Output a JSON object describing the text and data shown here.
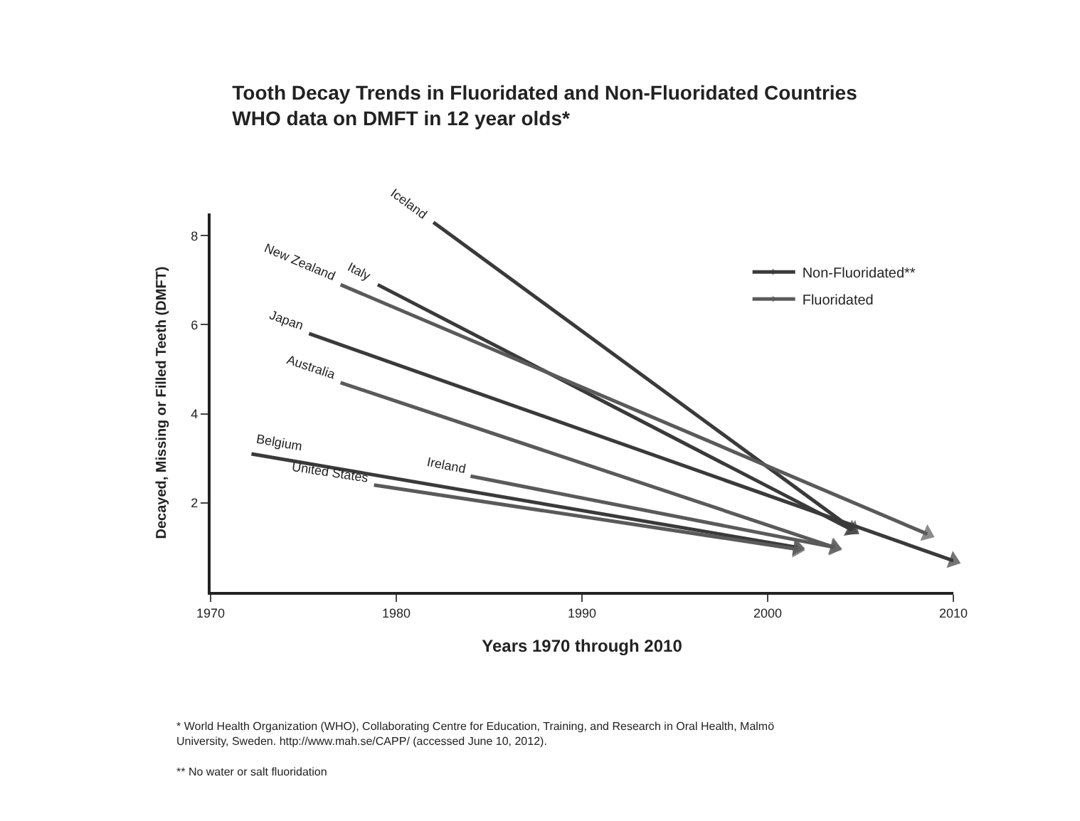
{
  "chart_data": {
    "type": "line",
    "title": "Tooth Decay Trends in Fluoridated and Non-Fluoridated Countries",
    "subtitle": "WHO data on DMFT in 12 year olds*",
    "xlabel": "Years 1970 through 2010",
    "ylabel": "Decayed, Missing or Filled Teeth (DMFT)",
    "xlim": [
      1970,
      2010
    ],
    "xticks": [
      1970,
      1980,
      1990,
      2000,
      2010
    ],
    "ylim": [
      0,
      8.5
    ],
    "yticks": [
      2,
      4,
      6,
      8
    ],
    "legend": "top right",
    "marker": "triangle",
    "series": [
      {
        "name": "Non-Fluoridated**",
        "color": "#3a3a3a",
        "x": [
          1982,
          2004.6,
          null,
          1979,
          2004.5,
          null,
          1975.3,
          2010,
          null,
          1972.2,
          2001.6
        ],
        "values": [
          8.3,
          1.4,
          null,
          6.9,
          1.4,
          null,
          5.8,
          0.7,
          null,
          3.1,
          1.0
        ]
      },
      {
        "name": "Fluoridated",
        "color": "#5a5a5a",
        "x": [
          1977,
          2008.6,
          null,
          1977,
          2003.6,
          null,
          1984,
          2003.6,
          null,
          1978.8,
          2001.6
        ],
        "values": [
          6.9,
          1.3,
          null,
          4.7,
          1.0,
          null,
          2.6,
          1.0,
          null,
          2.4,
          0.96
        ]
      }
    ],
    "annotations": [
      {
        "text": "Iceland",
        "x": 1982,
        "y": 8.3
      },
      {
        "text": "Italy",
        "x": 1979,
        "y": 6.9
      },
      {
        "text": "New Zealand",
        "x": 1977,
        "y": 6.9
      },
      {
        "text": "Japan",
        "x": 1975.3,
        "y": 5.8
      },
      {
        "text": "Australia",
        "x": 1977,
        "y": 4.7
      },
      {
        "text": "Belgium",
        "x": 1972.2,
        "y": 3.1
      },
      {
        "text": "Ireland",
        "x": 1984,
        "y": 2.6
      },
      {
        "text": "United States",
        "x": 1978.8,
        "y": 2.4
      },
      "* World Health Organization (WHO), Collaborating Centre for Education, Training, and Research in Oral Health, Malmö University, Sweden. http://www.mah.se/CAPP/ (accessed June 10, 2012).",
      "** No water or salt fluoridation"
    ]
  }
}
